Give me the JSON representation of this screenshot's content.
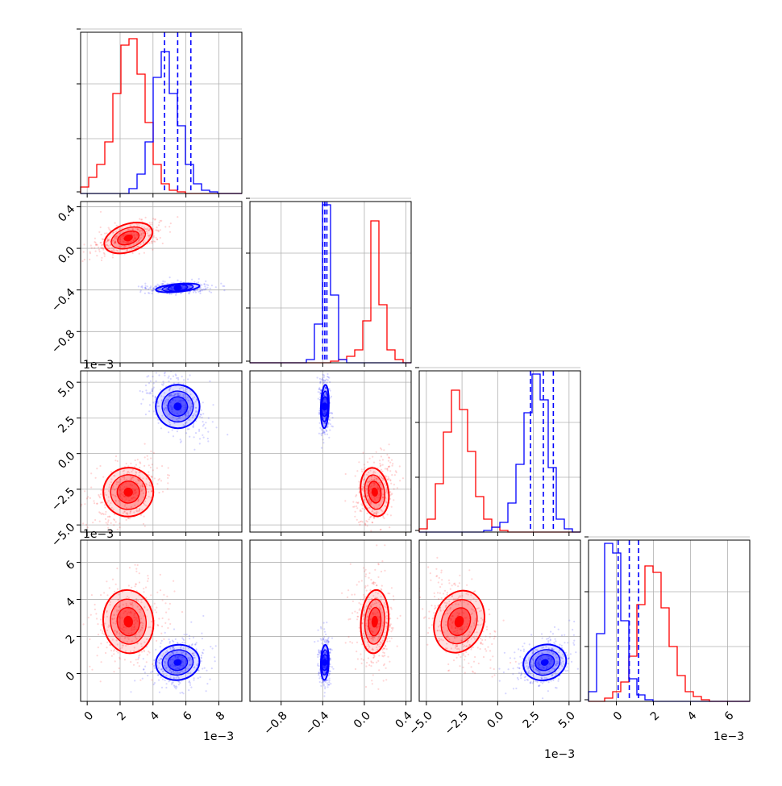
{
  "chart_data": {
    "type": "scatter",
    "title": "",
    "series": [
      {
        "color": "#ff0000",
        "centers": [
          0.0025,
          0.1,
          -0.0027,
          0.0028
        ],
        "sd": [
          0.0008,
          0.07,
          0.0009,
          0.0009
        ]
      },
      {
        "color": "#0000ff",
        "centers": [
          0.0055,
          -0.38,
          0.0033,
          0.0006
        ],
        "sd": [
          0.0007,
          0.02,
          0.0008,
          0.0005
        ]
      }
    ],
    "quantiles_series": "blue",
    "quantiles": [
      [
        0.0047,
        0.0055,
        0.0063
      ],
      [
        -0.4,
        -0.38,
        -0.36
      ],
      [
        0.0023,
        0.0032,
        0.0039
      ],
      [
        0.0001,
        0.0007,
        0.0012
      ]
    ],
    "ranges": [
      [
        -0.0004,
        0.0094
      ],
      [
        -1.1,
        0.45
      ],
      [
        -0.0055,
        0.0058
      ],
      [
        -0.0015,
        0.0072
      ]
    ],
    "ticks": [
      [
        0,
        0.002,
        0.004,
        0.006,
        0.008
      ],
      [
        -0.8,
        -0.4,
        0.0,
        0.4
      ],
      [
        -0.005,
        -0.0025,
        0,
        0.0025,
        0.005
      ],
      [
        0,
        0.002,
        0.004,
        0.006
      ]
    ],
    "tick_labels": [
      [
        "0",
        "2",
        "4",
        "6",
        "8"
      ],
      [
        "−0.8",
        "−0.4",
        "0.0",
        "0.4"
      ],
      [
        "−5.0",
        "−2.5",
        "0.0",
        "2.5",
        "5.0"
      ],
      [
        "0",
        "2",
        "4",
        "6"
      ]
    ],
    "diag_hist": [
      {
        "red": [
          0.04,
          0.1,
          0.18,
          0.32,
          0.62,
          0.92,
          0.96,
          0.74,
          0.44,
          0.18,
          0.06,
          0.02,
          0.01,
          0,
          0,
          0,
          0,
          0,
          0,
          0
        ],
        "blue": [
          0,
          0,
          0,
          0,
          0,
          0,
          0.03,
          0.12,
          0.32,
          0.72,
          0.88,
          0.62,
          0.42,
          0.18,
          0.06,
          0.02,
          0.01,
          0,
          0,
          0
        ]
      },
      {
        "red": [
          0,
          0,
          0,
          0,
          0,
          0,
          0,
          0,
          0,
          0,
          0.01,
          0.02,
          0.04,
          0.08,
          0.26,
          0.88,
          0.36,
          0.08,
          0.02,
          0
        ],
        "blue": [
          0,
          0,
          0,
          0,
          0,
          0,
          0,
          0.02,
          0.24,
          0.98,
          0.42,
          0.02,
          0,
          0,
          0,
          0,
          0,
          0,
          0,
          0
        ]
      },
      {
        "red": [
          0.02,
          0.08,
          0.3,
          0.62,
          0.88,
          0.76,
          0.5,
          0.22,
          0.08,
          0.03,
          0.01,
          0,
          0,
          0,
          0,
          0,
          0,
          0,
          0,
          0
        ],
        "blue": [
          0,
          0,
          0,
          0,
          0,
          0,
          0,
          0,
          0.01,
          0.03,
          0.06,
          0.18,
          0.42,
          0.74,
          0.98,
          0.82,
          0.4,
          0.08,
          0.02,
          0
        ]
      },
      {
        "red": [
          0,
          0,
          0.02,
          0.06,
          0.12,
          0.28,
          0.6,
          0.84,
          0.8,
          0.58,
          0.34,
          0.16,
          0.06,
          0.03,
          0.01,
          0,
          0,
          0,
          0,
          0
        ],
        "blue": [
          0.06,
          0.42,
          0.98,
          0.92,
          0.5,
          0.14,
          0.04,
          0.01,
          0,
          0,
          0,
          0,
          0,
          0,
          0,
          0,
          0,
          0,
          0,
          0
        ]
      }
    ],
    "offset_labels": {
      "col0": "1e−3",
      "col2": "1e−3",
      "col3": "1e−3",
      "row2": "1e−3",
      "row3": "1e−3"
    }
  }
}
